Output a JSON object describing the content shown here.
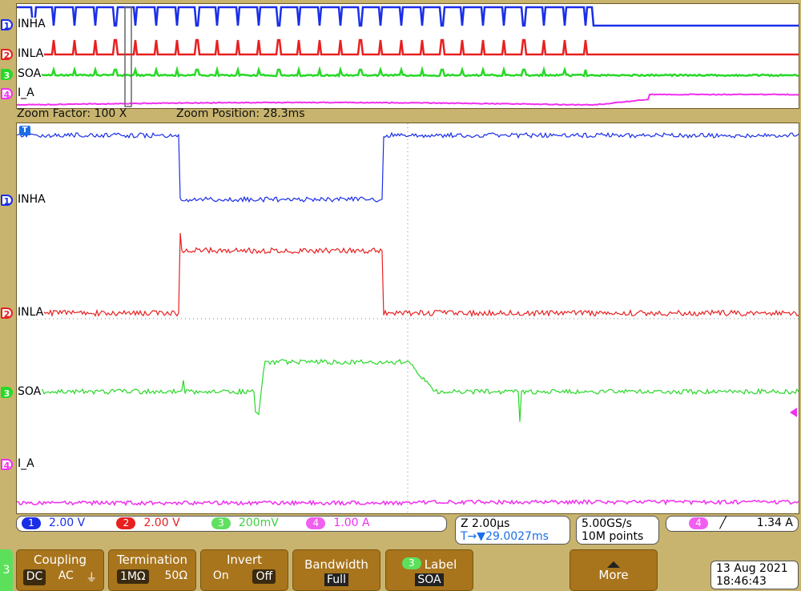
{
  "overview": {
    "zoom_factor_label": "Zoom Factor: 100 X",
    "zoom_position_label": "Zoom Position: 28.3ms"
  },
  "channels": [
    {
      "num": "1",
      "label": "INHA",
      "scale": "2.00 V",
      "color": "#1a2ee8"
    },
    {
      "num": "2",
      "label": "INLA",
      "scale": "2.00 V",
      "color": "#e82020"
    },
    {
      "num": "3",
      "label": "SOA",
      "scale": "200mV",
      "color": "#28d828"
    },
    {
      "num": "4",
      "label": "I_A",
      "scale": "1.00 A",
      "color": "#f030f0"
    }
  ],
  "trigger_marker": "T",
  "timebase": {
    "zoom_scale": "Z 2.00µs",
    "trigger_position": "29.0027ms",
    "trigger_prefix": "T→▼"
  },
  "acquisition": {
    "sample_rate": "5.00GS/s",
    "record_length": "10M points"
  },
  "trigger": {
    "channel": "4",
    "slope_icon": "rising-edge",
    "level": "1.34 A"
  },
  "datetime": {
    "date": "13 Aug 2021",
    "time": "18:46:43"
  },
  "menu": {
    "channel_tab": "3",
    "coupling": {
      "title": "Coupling",
      "options": [
        "DC",
        "AC",
        "⏚"
      ],
      "selected": "DC"
    },
    "termination": {
      "title": "Termination",
      "options": [
        "1MΩ",
        "50Ω"
      ],
      "selected": "1MΩ"
    },
    "invert": {
      "title": "Invert",
      "options": [
        "On",
        "Off"
      ],
      "selected": "Off"
    },
    "bandwidth": {
      "title": "Bandwidth",
      "value": "Full"
    },
    "label": {
      "channel": "3",
      "title": "Label",
      "value": "SOA"
    },
    "more": {
      "title": "More"
    }
  }
}
